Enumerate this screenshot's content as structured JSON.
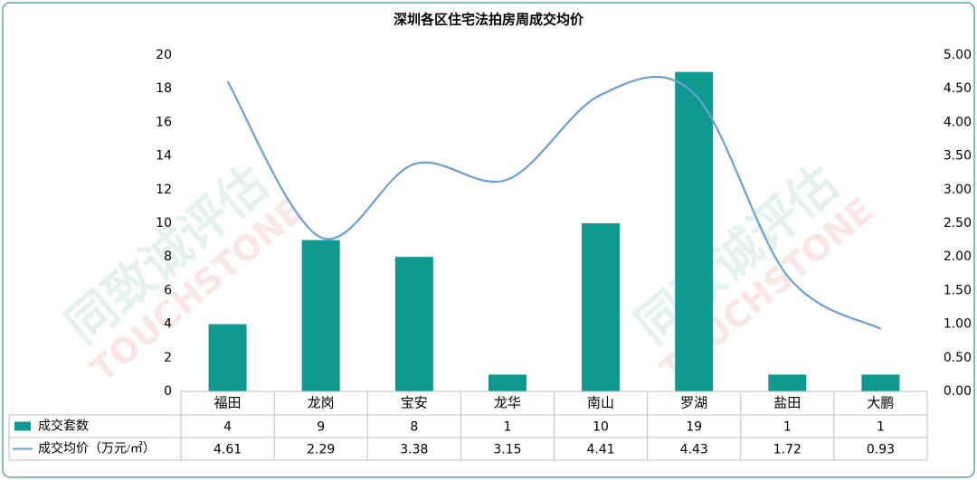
{
  "chart_data": {
    "type": "bar-line",
    "title": "深圳各区住宅法拍房周成交均价",
    "watermark": [
      "同致诚评估",
      "TOUCHSTONE"
    ],
    "categories": [
      "福田",
      "龙岗",
      "宝安",
      "龙华",
      "南山",
      "罗湖",
      "盐田",
      "大鹏"
    ],
    "series": [
      {
        "name": "成交套数",
        "color": "#0e9a91",
        "type": "bar",
        "axis": "y",
        "values": [
          4,
          9,
          8,
          1,
          10,
          19,
          1,
          1
        ]
      },
      {
        "name": "成交均价（万元/㎡）",
        "color": "#6a9fd8",
        "type": "line",
        "axis": "y2",
        "values": [
          4.61,
          2.29,
          3.38,
          3.15,
          4.41,
          4.43,
          1.72,
          0.93
        ]
      }
    ],
    "ylim": [
      0,
      20
    ],
    "yticks": [
      0,
      2,
      4,
      6,
      8,
      10,
      12,
      14,
      16,
      18,
      20
    ],
    "y2lim": [
      0,
      5
    ],
    "y2ticks": [
      {
        "value": 0,
        "label": "0.00"
      },
      {
        "value": 0.5,
        "label": "0.50"
      },
      {
        "value": 1,
        "label": "1.00"
      },
      {
        "value": 1.5,
        "label": "1.50"
      },
      {
        "value": 2,
        "label": "2.00"
      },
      {
        "value": 2.5,
        "label": "2.50"
      },
      {
        "value": 3,
        "label": "3.00"
      },
      {
        "value": 3.5,
        "label": "3.50"
      },
      {
        "value": 4,
        "label": "4.00"
      },
      {
        "value": 4.5,
        "label": "4.50"
      },
      {
        "value": 5,
        "label": "5.00"
      }
    ],
    "data_table": true
  }
}
